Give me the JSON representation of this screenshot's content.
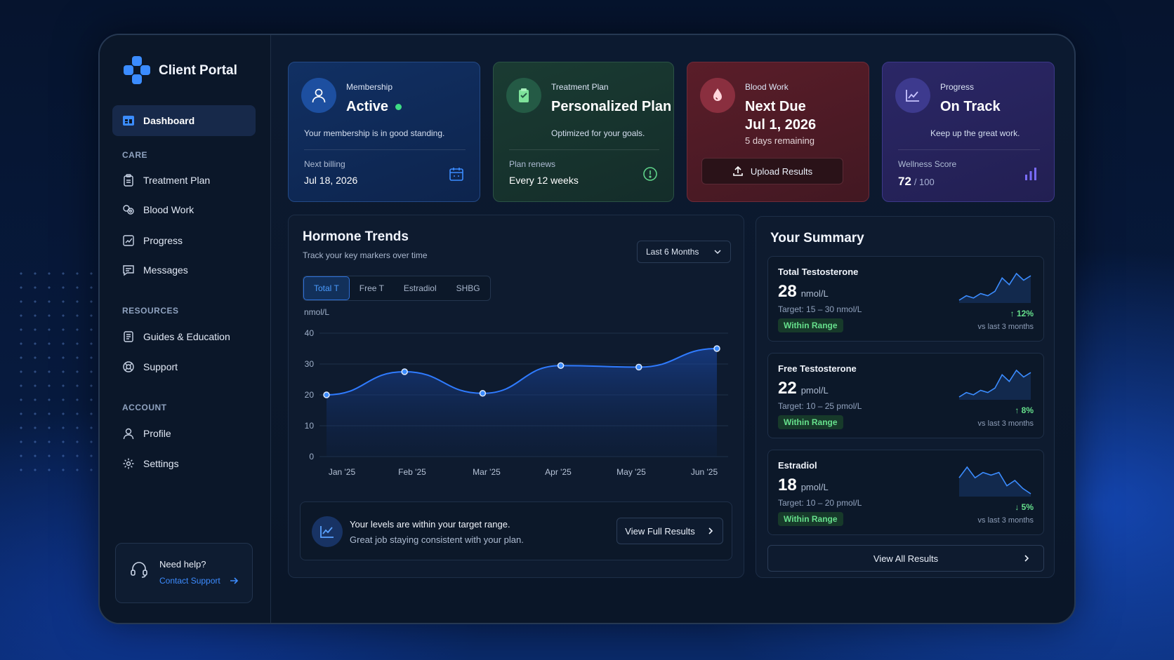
{
  "app": {
    "title": "Client Portal"
  },
  "sidebar": {
    "active": "Dashboard",
    "sections": {
      "care": "CARE",
      "resources": "RESOURCES",
      "account": "ACCOUNT"
    },
    "items": {
      "treatment_plan": "Treatment Plan",
      "blood_work": "Blood Work",
      "progress": "Progress",
      "messages": "Messages",
      "guides": "Guides & Education",
      "support": "Support",
      "profile": "Profile",
      "settings": "Settings"
    },
    "help": {
      "title": "Need help?",
      "link": "Contact Support"
    }
  },
  "cards": {
    "membership": {
      "label": "Membership",
      "value": "Active",
      "desc": "Your membership is in good standing.",
      "sublabel": "Next billing",
      "subvalue": "Jul 18, 2026"
    },
    "treatment": {
      "label": "Treatment Plan",
      "value": "Personalized Plan",
      "desc": "Optimized for your goals.",
      "sublabel": "Plan renews",
      "subvalue": "Every 12 weeks"
    },
    "blood": {
      "label": "Blood Work",
      "value": "Next Due",
      "date": "Jul 1, 2026",
      "remaining": "5 days remaining",
      "button": "Upload Results"
    },
    "progress": {
      "label": "Progress",
      "value": "On Track",
      "desc": "Keep up the great work.",
      "sublabel": "Wellness Score",
      "score": "72",
      "score_max": "/ 100"
    }
  },
  "trends": {
    "title": "Hormone Trends",
    "subtitle": "Track your key markers over time",
    "range": "Last 6 Months",
    "tabs": [
      "Total T",
      "Free T",
      "Estradiol",
      "SHBG"
    ],
    "insight_line1": "Your levels are within your target range.",
    "insight_line2": "Great job staying consistent with your plan.",
    "button": "View Full Results"
  },
  "chart_data": {
    "type": "area",
    "x": [
      "Jan '25",
      "Feb '25",
      "Mar '25",
      "Apr '25",
      "May '25",
      "Jun '25"
    ],
    "series": [
      {
        "values": [
          20,
          27.5,
          20.5,
          29.5,
          29,
          35
        ]
      }
    ],
    "ylabel": "nmol/L",
    "ylim": [
      0,
      40
    ],
    "yticks": [
      0,
      10,
      20,
      30,
      40
    ],
    "grid": true
  },
  "summary": {
    "title": "Your Summary",
    "items": [
      {
        "name": "Total Testosterone",
        "value": "28",
        "unit": "nmol/L",
        "target": "Target: 15 – 30 nmol/L",
        "status": "Within Range",
        "change": "↑ 12%",
        "compare": "vs last 3 months",
        "trend": [
          4,
          6,
          5,
          7,
          6,
          8,
          14,
          11,
          16,
          13,
          15
        ]
      },
      {
        "name": "Free Testosterone",
        "value": "22",
        "unit": "pmol/L",
        "target": "Target: 10 – 25 pmol/L",
        "status": "Within Range",
        "change": "↑ 8%",
        "compare": "vs last 3 months",
        "trend": [
          4,
          6,
          5,
          7,
          6,
          8,
          14,
          11,
          16,
          13,
          15
        ]
      },
      {
        "name": "Estradiol",
        "value": "18",
        "unit": "pmol/L",
        "target": "Target: 10 – 20 pmol/L",
        "status": "Within Range",
        "change": "↓ 5%",
        "compare": "vs last 3 months",
        "trend": [
          12,
          16,
          12,
          14,
          13,
          14,
          9,
          11,
          8,
          6
        ]
      }
    ],
    "button": "View All Results"
  },
  "colors": {
    "accent": "#3b8cff",
    "positive": "#66e08c",
    "negative": "#66e08c",
    "line": "#2f7bff"
  }
}
